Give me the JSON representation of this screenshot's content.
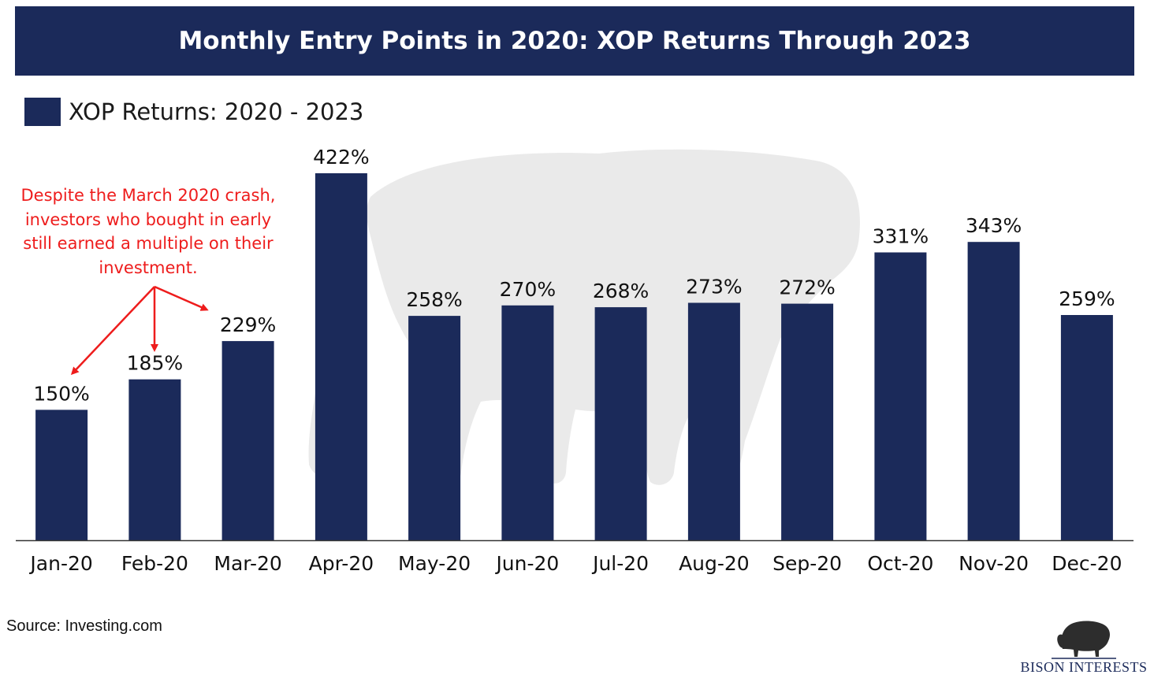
{
  "title": "Monthly Entry Points in 2020: XOP Returns Through 2023",
  "legend": {
    "label": "XOP Returns: 2020 - 2023",
    "color": "#1b2a5a"
  },
  "annotation": "Despite the March 2020 crash, investors who bought in early still earned a multiple on their investment.",
  "source": "Source: Investing.com",
  "logo": {
    "brand": "BISON INTERESTS",
    "icon": "bison-icon"
  },
  "colors": {
    "bar": "#1b2a5a",
    "title_bg": "#1b2a5a",
    "annotation": "#ee1c1c",
    "axis": "#333333"
  },
  "chart_data": {
    "type": "bar",
    "categories": [
      "Jan-20",
      "Feb-20",
      "Mar-20",
      "Apr-20",
      "May-20",
      "Jun-20",
      "Jul-20",
      "Aug-20",
      "Sep-20",
      "Oct-20",
      "Nov-20",
      "Dec-20"
    ],
    "series": [
      {
        "name": "XOP Returns: 2020 - 2023",
        "values": [
          150,
          185,
          229,
          422,
          258,
          270,
          268,
          273,
          272,
          331,
          343,
          259
        ]
      }
    ],
    "data_labels": [
      "150%",
      "185%",
      "229%",
      "422%",
      "258%",
      "270%",
      "268%",
      "273%",
      "272%",
      "331%",
      "343%",
      "259%"
    ],
    "title": "Monthly Entry Points in 2020: XOP Returns Through 2023",
    "ylim": [
      0,
      450
    ],
    "grid": false,
    "legend_position": "top-left"
  }
}
